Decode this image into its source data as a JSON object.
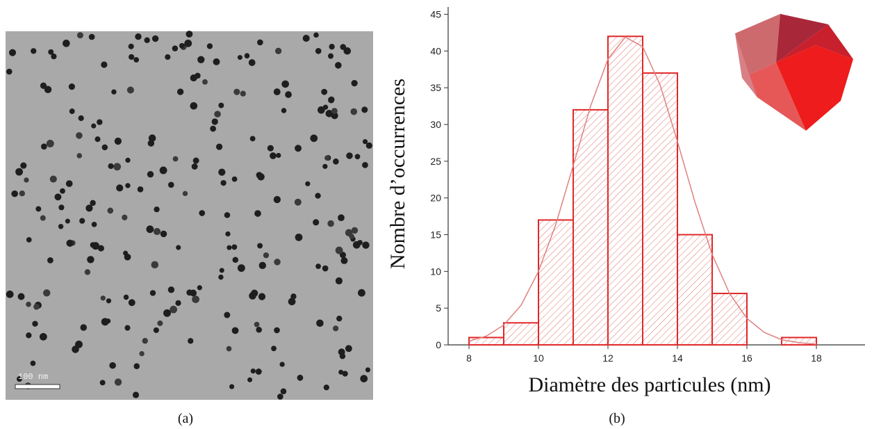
{
  "figure": {
    "caption_a": "(a)",
    "caption_b": "(b)",
    "scale_bar": "100 nm"
  },
  "chart_data": {
    "type": "histogram",
    "xlabel": "Diamètre des particules (nm)",
    "ylabel": "Nombre d’occurrences",
    "bins": [
      8,
      9,
      10,
      11,
      12,
      13,
      14,
      15,
      16,
      17,
      18
    ],
    "values": [
      1,
      3,
      17,
      32,
      42,
      37,
      15,
      7,
      0,
      1
    ],
    "color": "#e02828",
    "fit": {
      "color": "#e08080",
      "x": [
        8,
        8.5,
        9,
        9.5,
        10,
        10.5,
        11,
        11.5,
        12,
        12.5,
        13,
        13.5,
        14,
        14.5,
        15,
        15.5,
        16,
        16.5,
        17,
        17.5,
        18
      ],
      "values": [
        0.5,
        1.2,
        2.7,
        5.4,
        10,
        16.4,
        24.4,
        32.5,
        38.9,
        41.9,
        40.6,
        35.4,
        27.7,
        19.5,
        12.3,
        7,
        3.6,
        1.7,
        0.7,
        0.3,
        0.1
      ]
    },
    "xlim": [
      7.4,
      19.4
    ],
    "ylim": [
      0,
      46
    ],
    "xticks": [
      8,
      10,
      12,
      14,
      16,
      18
    ],
    "yticks": [
      0,
      5,
      10,
      15,
      20,
      25,
      30,
      35,
      40,
      45
    ]
  }
}
